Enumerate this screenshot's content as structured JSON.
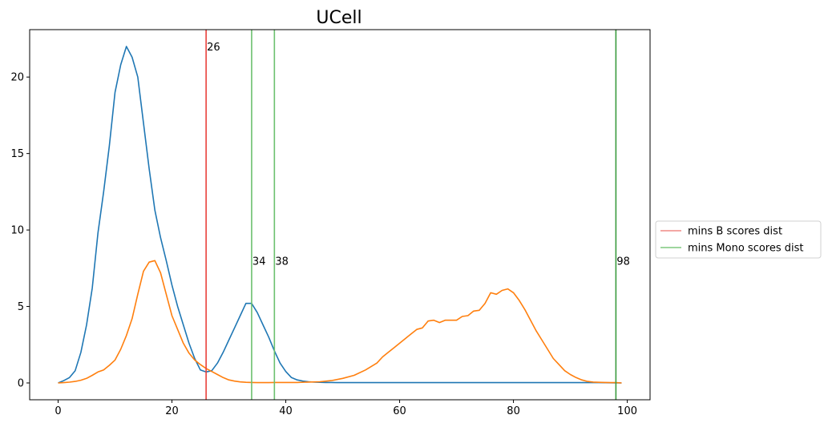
{
  "chart_data": {
    "type": "line",
    "title": "UCell",
    "xlabel": "",
    "ylabel": "",
    "xlim": [
      -5,
      104
    ],
    "ylim": [
      -1.1,
      23.1
    ],
    "xticks": [
      0,
      20,
      40,
      60,
      80,
      100
    ],
    "yticks": [
      0,
      5,
      10,
      15,
      20
    ],
    "grid": false,
    "legend_placement": "center-right-outside",
    "series": [
      {
        "color": "#1f77b4",
        "x": [
          0,
          1,
          2,
          3,
          4,
          5,
          6,
          7,
          8,
          9,
          10,
          11,
          12,
          13,
          14,
          15,
          16,
          17,
          18,
          19,
          20,
          21,
          22,
          23,
          24,
          25,
          26,
          27,
          28,
          29,
          30,
          31,
          32,
          33,
          34,
          35,
          36,
          37,
          38,
          39,
          40,
          41,
          42,
          43,
          44,
          45,
          46,
          47,
          48,
          49,
          50,
          55,
          60,
          65,
          70,
          75,
          80,
          85,
          90,
          95,
          99
        ],
        "y": [
          0,
          0.15,
          0.35,
          0.8,
          2,
          3.8,
          6.2,
          9.8,
          12.5,
          15.5,
          19,
          20.8,
          22,
          21.3,
          20,
          17,
          14,
          11.3,
          9.5,
          8,
          6.4,
          5,
          3.8,
          2.6,
          1.6,
          0.85,
          0.72,
          0.8,
          1.3,
          2,
          2.8,
          3.6,
          4.4,
          5.2,
          5.2,
          4.6,
          3.8,
          3,
          2.1,
          1.3,
          0.75,
          0.35,
          0.2,
          0.12,
          0.08,
          0.05,
          0.04,
          0.03,
          0.03,
          0.02,
          0.02,
          0.02,
          0.02,
          0.02,
          0.02,
          0.02,
          0.02,
          0.02,
          0.02,
          0.02,
          0
        ]
      },
      {
        "color": "#ff7f0e",
        "x": [
          0,
          1,
          2,
          3,
          4,
          5,
          6,
          7,
          8,
          9,
          10,
          11,
          12,
          13,
          14,
          15,
          16,
          17,
          18,
          19,
          20,
          21,
          22,
          23,
          24,
          25,
          26,
          27,
          28,
          29,
          30,
          31,
          32,
          33,
          34,
          35,
          36,
          37,
          38,
          39,
          40,
          42,
          44,
          46,
          48,
          50,
          52,
          54,
          56,
          57,
          58,
          59,
          60,
          61,
          62,
          63,
          64,
          65,
          66,
          67,
          68,
          69,
          70,
          71,
          72,
          73,
          74,
          75,
          76,
          77,
          78,
          79,
          80,
          81,
          82,
          83,
          84,
          85,
          86,
          87,
          88,
          89,
          90,
          91,
          92,
          93,
          94,
          95,
          96,
          97,
          98,
          99
        ],
        "y": [
          0,
          0.02,
          0.05,
          0.1,
          0.18,
          0.3,
          0.5,
          0.72,
          0.85,
          1.15,
          1.5,
          2.2,
          3.1,
          4.2,
          5.8,
          7.3,
          7.9,
          8,
          7.2,
          5.8,
          4.4,
          3.5,
          2.6,
          1.95,
          1.5,
          1.2,
          0.95,
          0.75,
          0.55,
          0.35,
          0.2,
          0.12,
          0.07,
          0.04,
          0.03,
          0.02,
          0.02,
          0.02,
          0.03,
          0.03,
          0.03,
          0.03,
          0.06,
          0.08,
          0.15,
          0.3,
          0.5,
          0.85,
          1.3,
          1.7,
          2,
          2.3,
          2.6,
          2.9,
          3.2,
          3.5,
          3.6,
          4.05,
          4.1,
          3.95,
          4.1,
          4.1,
          4.1,
          4.35,
          4.4,
          4.7,
          4.75,
          5.2,
          5.9,
          5.8,
          6.05,
          6.15,
          5.9,
          5.4,
          4.8,
          4.1,
          3.4,
          2.8,
          2.2,
          1.6,
          1.2,
          0.8,
          0.55,
          0.35,
          0.2,
          0.1,
          0.06,
          0.04,
          0.03,
          0.02,
          0.02,
          0
        ]
      }
    ],
    "vlines": [
      {
        "x": 26,
        "label": "26",
        "color": "#e8413c",
        "legend": "mins B scores dist",
        "label_y": 22
      },
      {
        "x": 34,
        "label": "34",
        "color": "#6cc06f",
        "legend": "mins Mono scores dist",
        "label_y": 8
      },
      {
        "x": 38,
        "label": "38",
        "color": "#6cc06f",
        "legend": "",
        "label_y": 8
      },
      {
        "x": 98,
        "label": "98",
        "color": "#3a9a3e",
        "legend": "",
        "label_y": 8
      }
    ],
    "legend": [
      {
        "label": "mins B scores dist",
        "color": "#f08a86"
      },
      {
        "label": "mins Mono scores dist",
        "color": "#7fc97f"
      }
    ]
  }
}
